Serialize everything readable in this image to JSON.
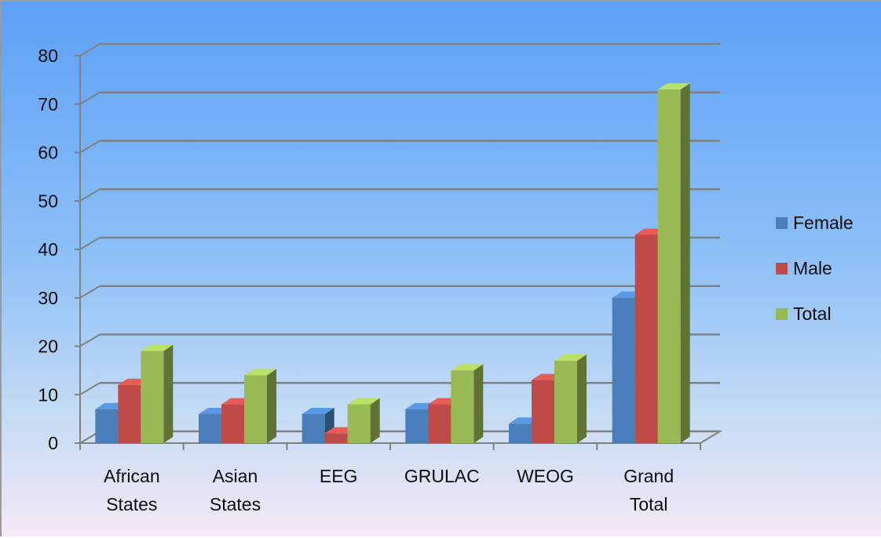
{
  "chart_data": {
    "type": "bar",
    "categories": [
      [
        "African",
        "States"
      ],
      [
        "Asian",
        "States"
      ],
      [
        "EEG"
      ],
      [
        "GRULAC"
      ],
      [
        "WEOG"
      ],
      [
        "Grand",
        "Total"
      ]
    ],
    "series": [
      {
        "name": "Female",
        "values": [
          7,
          6,
          6,
          7,
          4,
          30
        ],
        "color": "#4a7ebb"
      },
      {
        "name": "Male",
        "values": [
          12,
          8,
          2,
          8,
          13,
          43
        ],
        "color": "#be4b48"
      },
      {
        "name": "Total",
        "values": [
          19,
          14,
          8,
          15,
          17,
          73
        ],
        "color": "#98b954"
      }
    ],
    "ylim": [
      0,
      80
    ],
    "yticks": [
      0,
      10,
      20,
      30,
      40,
      50,
      60,
      70,
      80
    ],
    "grid": true,
    "legend_position": "right",
    "style": "3d-clustered-column"
  }
}
